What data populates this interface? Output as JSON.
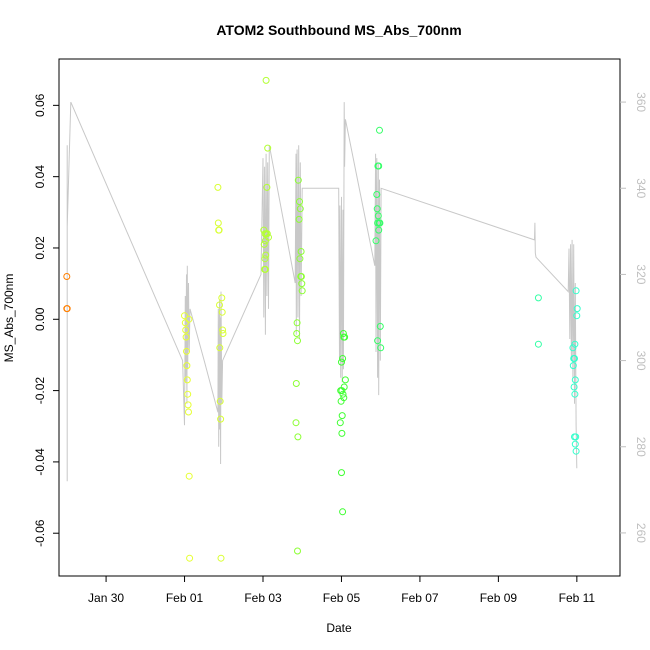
{
  "chart_data": {
    "type": "scatter",
    "title": "ATOM2 Southbound MS_Abs_700nm",
    "xlabel": "Date",
    "ylabel": "MS_Abs_700nm",
    "xlim": [
      -3.2,
      11.1
    ],
    "ylim": [
      -0.072,
      0.073
    ],
    "y2lim": [
      250,
      370
    ],
    "x_ticks": [
      {
        "value": -2,
        "label": "Jan 30"
      },
      {
        "value": 0,
        "label": "Feb 01"
      },
      {
        "value": 2,
        "label": "Feb 03"
      },
      {
        "value": 4,
        "label": "Feb 05"
      },
      {
        "value": 6,
        "label": "Feb 07"
      },
      {
        "value": 8,
        "label": "Feb 09"
      },
      {
        "value": 10,
        "label": "Feb 11"
      }
    ],
    "y_ticks": [
      -0.06,
      -0.04,
      -0.02,
      0.0,
      0.02,
      0.04,
      0.06
    ],
    "y_tick_labels": [
      "-0.06",
      "-0.04",
      "-0.02",
      "0.00",
      "0.02",
      "0.04",
      "0.06"
    ],
    "y2_ticks": [
      260,
      280,
      300,
      320,
      340,
      360
    ],
    "y2_tick_labels": [
      "260",
      "280",
      "300",
      "320",
      "340",
      "360"
    ],
    "colors": {
      "line": "#c8c8c8",
      "axis": "#000000",
      "right_axis": "#bfbfbf"
    },
    "points": [
      {
        "x": -3.0,
        "y": 0.012,
        "c": "#ff7f00"
      },
      {
        "x": -3.0,
        "y": 0.003,
        "c": "#ff7f00"
      },
      {
        "x": -2.99,
        "y": 0.003,
        "c": "#ff7f00"
      },
      {
        "x": 0.0,
        "y": 0.001,
        "c": "#e6ff33"
      },
      {
        "x": 0.02,
        "y": -0.001,
        "c": "#e6ff33"
      },
      {
        "x": 0.03,
        "y": -0.003,
        "c": "#e6ff33"
      },
      {
        "x": 0.04,
        "y": -0.005,
        "c": "#e6ff33"
      },
      {
        "x": 0.05,
        "y": -0.009,
        "c": "#e6ff33"
      },
      {
        "x": 0.06,
        "y": -0.013,
        "c": "#e6ff33"
      },
      {
        "x": 0.07,
        "y": -0.017,
        "c": "#e6ff33"
      },
      {
        "x": 0.08,
        "y": -0.021,
        "c": "#e6ff33"
      },
      {
        "x": 0.09,
        "y": -0.024,
        "c": "#e6ff33"
      },
      {
        "x": 0.1,
        "y": -0.026,
        "c": "#e6ff33"
      },
      {
        "x": 0.11,
        "y": 0.0,
        "c": "#e6ff33"
      },
      {
        "x": 0.12,
        "y": -0.044,
        "c": "#e6ff33"
      },
      {
        "x": 0.13,
        "y": -0.067,
        "c": "#e6ff33"
      },
      {
        "x": 0.85,
        "y": 0.037,
        "c": "#d9ff33"
      },
      {
        "x": 0.86,
        "y": 0.027,
        "c": "#d9ff33"
      },
      {
        "x": 0.87,
        "y": 0.025,
        "c": "#d9ff33"
      },
      {
        "x": 0.88,
        "y": 0.025,
        "c": "#d9ff33"
      },
      {
        "x": 0.89,
        "y": 0.004,
        "c": "#d9ff33"
      },
      {
        "x": 0.9,
        "y": -0.008,
        "c": "#d9ff33"
      },
      {
        "x": 0.91,
        "y": -0.023,
        "c": "#d9ff33"
      },
      {
        "x": 0.92,
        "y": -0.028,
        "c": "#d9ff33"
      },
      {
        "x": 0.93,
        "y": -0.067,
        "c": "#d9ff33"
      },
      {
        "x": 0.95,
        "y": 0.006,
        "c": "#d9ff33"
      },
      {
        "x": 0.96,
        "y": 0.002,
        "c": "#d9ff33"
      },
      {
        "x": 0.97,
        "y": -0.003,
        "c": "#d9ff33"
      },
      {
        "x": 0.98,
        "y": -0.004,
        "c": "#d9ff33"
      },
      {
        "x": 2.08,
        "y": 0.067,
        "c": "#b3ff33"
      },
      {
        "x": 2.12,
        "y": 0.048,
        "c": "#b3ff33"
      },
      {
        "x": 2.1,
        "y": 0.037,
        "c": "#b3ff33"
      },
      {
        "x": 2.02,
        "y": 0.025,
        "c": "#b3ff33"
      },
      {
        "x": 2.05,
        "y": 0.024,
        "c": "#b3ff33"
      },
      {
        "x": 2.08,
        "y": 0.024,
        "c": "#b3ff33"
      },
      {
        "x": 2.11,
        "y": 0.024,
        "c": "#b3ff33"
      },
      {
        "x": 2.14,
        "y": 0.023,
        "c": "#b3ff33"
      },
      {
        "x": 2.06,
        "y": 0.022,
        "c": "#b3ff33"
      },
      {
        "x": 2.03,
        "y": 0.021,
        "c": "#b3ff33"
      },
      {
        "x": 2.07,
        "y": 0.018,
        "c": "#b3ff33"
      },
      {
        "x": 2.05,
        "y": 0.017,
        "c": "#b3ff33"
      },
      {
        "x": 2.04,
        "y": 0.014,
        "c": "#b3ff33"
      },
      {
        "x": 2.06,
        "y": 0.014,
        "c": "#b3ff33"
      },
      {
        "x": 2.9,
        "y": 0.039,
        "c": "#8cff33"
      },
      {
        "x": 2.93,
        "y": 0.033,
        "c": "#8cff33"
      },
      {
        "x": 2.95,
        "y": 0.031,
        "c": "#8cff33"
      },
      {
        "x": 2.92,
        "y": 0.028,
        "c": "#8cff33"
      },
      {
        "x": 2.97,
        "y": 0.019,
        "c": "#8cff33"
      },
      {
        "x": 2.94,
        "y": 0.017,
        "c": "#8cff33"
      },
      {
        "x": 2.96,
        "y": 0.012,
        "c": "#8cff33"
      },
      {
        "x": 2.98,
        "y": 0.012,
        "c": "#8cff33"
      },
      {
        "x": 2.99,
        "y": 0.01,
        "c": "#8cff33"
      },
      {
        "x": 3.0,
        "y": 0.008,
        "c": "#8cff33"
      },
      {
        "x": 2.87,
        "y": -0.001,
        "c": "#8cff33"
      },
      {
        "x": 2.86,
        "y": -0.004,
        "c": "#8cff33"
      },
      {
        "x": 2.88,
        "y": -0.006,
        "c": "#8cff33"
      },
      {
        "x": 2.85,
        "y": -0.018,
        "c": "#8cff33"
      },
      {
        "x": 2.84,
        "y": -0.029,
        "c": "#8cff33"
      },
      {
        "x": 2.89,
        "y": -0.033,
        "c": "#8cff33"
      },
      {
        "x": 2.88,
        "y": -0.065,
        "c": "#8cff33"
      },
      {
        "x": 4.0,
        "y": -0.012,
        "c": "#40ff33"
      },
      {
        "x": 4.03,
        "y": -0.011,
        "c": "#40ff33"
      },
      {
        "x": 4.05,
        "y": -0.004,
        "c": "#40ff33"
      },
      {
        "x": 4.06,
        "y": -0.005,
        "c": "#40ff33"
      },
      {
        "x": 4.08,
        "y": -0.005,
        "c": "#40ff33"
      },
      {
        "x": 4.1,
        "y": -0.017,
        "c": "#40ff33"
      },
      {
        "x": 4.07,
        "y": -0.019,
        "c": "#40ff33"
      },
      {
        "x": 3.98,
        "y": -0.02,
        "c": "#40ff33"
      },
      {
        "x": 4.01,
        "y": -0.02,
        "c": "#40ff33"
      },
      {
        "x": 4.04,
        "y": -0.021,
        "c": "#40ff33"
      },
      {
        "x": 4.06,
        "y": -0.022,
        "c": "#40ff33"
      },
      {
        "x": 3.99,
        "y": -0.023,
        "c": "#40ff33"
      },
      {
        "x": 4.02,
        "y": -0.027,
        "c": "#40ff33"
      },
      {
        "x": 3.97,
        "y": -0.029,
        "c": "#40ff33"
      },
      {
        "x": 4.01,
        "y": -0.032,
        "c": "#40ff33"
      },
      {
        "x": 4.0,
        "y": -0.043,
        "c": "#40ff33"
      },
      {
        "x": 4.03,
        "y": -0.054,
        "c": "#40ff33"
      },
      {
        "x": 4.97,
        "y": 0.053,
        "c": "#33ff66"
      },
      {
        "x": 4.93,
        "y": 0.043,
        "c": "#33ff66"
      },
      {
        "x": 4.95,
        "y": 0.043,
        "c": "#33ff66"
      },
      {
        "x": 4.9,
        "y": 0.035,
        "c": "#33ff66"
      },
      {
        "x": 4.91,
        "y": 0.031,
        "c": "#33ff66"
      },
      {
        "x": 4.94,
        "y": 0.029,
        "c": "#33ff66"
      },
      {
        "x": 4.92,
        "y": 0.027,
        "c": "#33ff66"
      },
      {
        "x": 4.96,
        "y": 0.027,
        "c": "#33ff66"
      },
      {
        "x": 4.98,
        "y": 0.027,
        "c": "#33ff66"
      },
      {
        "x": 4.95,
        "y": 0.025,
        "c": "#33ff66"
      },
      {
        "x": 4.88,
        "y": 0.022,
        "c": "#33ff66"
      },
      {
        "x": 4.99,
        "y": -0.002,
        "c": "#33ff66"
      },
      {
        "x": 4.92,
        "y": -0.006,
        "c": "#33ff66"
      },
      {
        "x": 5.0,
        "y": -0.008,
        "c": "#33ff66"
      },
      {
        "x": 9.02,
        "y": 0.006,
        "c": "#33ffa6"
      },
      {
        "x": 9.02,
        "y": -0.007,
        "c": "#33ffa6"
      },
      {
        "x": 9.98,
        "y": 0.008,
        "c": "#33ffcc"
      },
      {
        "x": 10.01,
        "y": 0.003,
        "c": "#33ffcc"
      },
      {
        "x": 10.0,
        "y": 0.001,
        "c": "#33ffcc"
      },
      {
        "x": 9.95,
        "y": -0.007,
        "c": "#33ffcc"
      },
      {
        "x": 9.9,
        "y": -0.008,
        "c": "#33ffcc"
      },
      {
        "x": 9.92,
        "y": -0.011,
        "c": "#33ffcc"
      },
      {
        "x": 9.94,
        "y": -0.011,
        "c": "#33ffcc"
      },
      {
        "x": 9.91,
        "y": -0.013,
        "c": "#33ffcc"
      },
      {
        "x": 9.96,
        "y": -0.017,
        "c": "#33ffcc"
      },
      {
        "x": 9.93,
        "y": -0.019,
        "c": "#33ffcc"
      },
      {
        "x": 9.95,
        "y": -0.021,
        "c": "#33ffcc"
      },
      {
        "x": 9.97,
        "y": -0.033,
        "c": "#33ffcc"
      },
      {
        "x": 9.94,
        "y": -0.033,
        "c": "#33ffcc"
      },
      {
        "x": 9.96,
        "y": -0.035,
        "c": "#33ffcc"
      },
      {
        "x": 9.98,
        "y": -0.037,
        "c": "#33ffcc"
      }
    ],
    "line_series_y2": [
      [
        -2.99,
        350
      ],
      [
        -2.99,
        272
      ],
      [
        -2.99,
        325
      ],
      [
        -2.99,
        331
      ],
      [
        -2.9,
        360
      ],
      [
        -0.05,
        300
      ],
      [
        0.0,
        285
      ],
      [
        0.02,
        315
      ],
      [
        0.03,
        295
      ],
      [
        0.05,
        320
      ],
      [
        0.06,
        290
      ],
      [
        0.07,
        322
      ],
      [
        0.08,
        298
      ],
      [
        0.1,
        318
      ],
      [
        0.12,
        302
      ],
      [
        0.14,
        312
      ],
      [
        0.5,
        300
      ],
      [
        0.85,
        288
      ],
      [
        0.86,
        312
      ],
      [
        0.87,
        280
      ],
      [
        0.89,
        314
      ],
      [
        0.9,
        284
      ],
      [
        0.91,
        310
      ],
      [
        0.92,
        276
      ],
      [
        0.93,
        316
      ],
      [
        0.95,
        290
      ],
      [
        0.97,
        300
      ],
      [
        1.95,
        320
      ],
      [
        2.0,
        347
      ],
      [
        2.02,
        310
      ],
      [
        2.04,
        345
      ],
      [
        2.06,
        306
      ],
      [
        2.08,
        348
      ],
      [
        2.1,
        315
      ],
      [
        2.12,
        346
      ],
      [
        2.14,
        312
      ],
      [
        2.16,
        350
      ],
      [
        2.82,
        318
      ],
      [
        2.84,
        348
      ],
      [
        2.85,
        306
      ],
      [
        2.87,
        349
      ],
      [
        2.89,
        310
      ],
      [
        2.91,
        350
      ],
      [
        2.93,
        305
      ],
      [
        2.95,
        346
      ],
      [
        2.97,
        315
      ],
      [
        3.0,
        340
      ],
      [
        3.93,
        340
      ],
      [
        3.95,
        300
      ],
      [
        3.96,
        336
      ],
      [
        3.98,
        296
      ],
      [
        4.0,
        338
      ],
      [
        4.02,
        295
      ],
      [
        4.04,
        335
      ],
      [
        4.05,
        298
      ],
      [
        4.07,
        360
      ],
      [
        4.08,
        345
      ],
      [
        4.1,
        356
      ],
      [
        4.85,
        322
      ],
      [
        4.87,
        348
      ],
      [
        4.88,
        302
      ],
      [
        4.9,
        347
      ],
      [
        4.92,
        296
      ],
      [
        4.94,
        346
      ],
      [
        4.95,
        292
      ],
      [
        4.97,
        342
      ],
      [
        4.99,
        300
      ],
      [
        5.01,
        340
      ],
      [
        8.92,
        328
      ],
      [
        8.93,
        332
      ],
      [
        8.94,
        325
      ],
      [
        8.96,
        324
      ],
      [
        9.78,
        316
      ],
      [
        9.8,
        326
      ],
      [
        9.82,
        305
      ],
      [
        9.84,
        327
      ],
      [
        9.86,
        300
      ],
      [
        9.88,
        328
      ],
      [
        9.9,
        296
      ],
      [
        9.92,
        327
      ],
      [
        9.94,
        290
      ],
      [
        9.96,
        318
      ],
      [
        9.98,
        285
      ],
      [
        10.0,
        275
      ]
    ]
  }
}
